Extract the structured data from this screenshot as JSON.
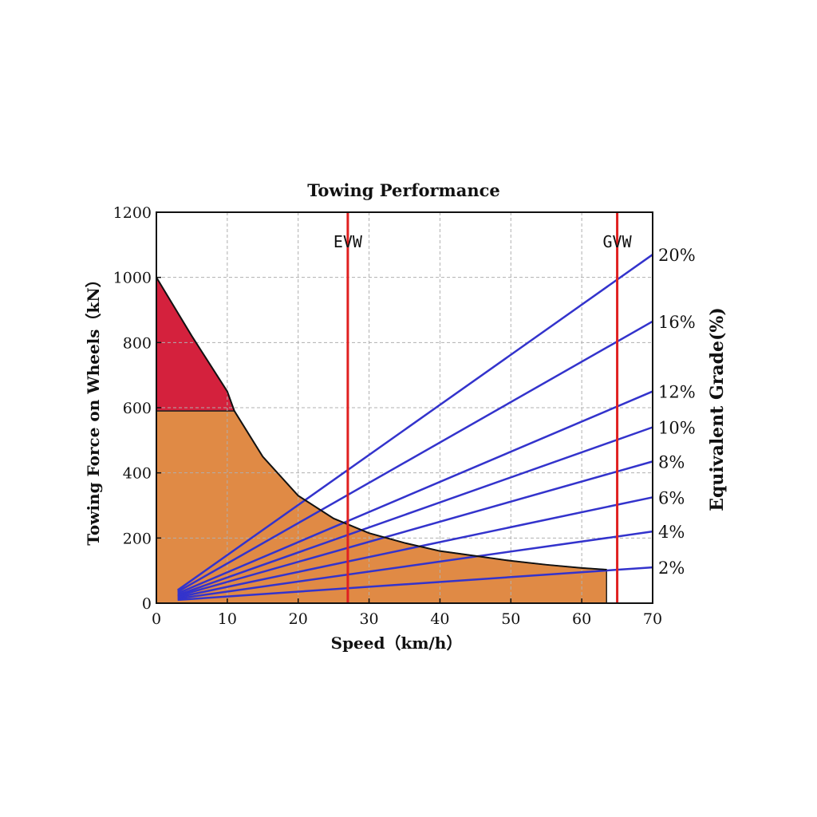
{
  "chart_data": {
    "type": "line",
    "title": "Towing Performance",
    "xlabel": "Speed（km/h）",
    "ylabel": "Towing Force on Wheels（kN）",
    "y2label": "Equivalent Grade(%)",
    "xlim": [
      0,
      70
    ],
    "ylim": [
      0,
      1200
    ],
    "x_ticks": [
      "0",
      "10",
      "20",
      "30",
      "40",
      "50",
      "60",
      "70"
    ],
    "y_ticks": [
      "0",
      "200",
      "400",
      "600",
      "800",
      "1000",
      "1200"
    ],
    "grid": true,
    "tractive_effort_curve": {
      "x": [
        0,
        5,
        10,
        11,
        15,
        20,
        25,
        30,
        35,
        40,
        45,
        50,
        55,
        60,
        63.5
      ],
      "y": [
        1000,
        820,
        650,
        590,
        450,
        330,
        260,
        215,
        185,
        160,
        145,
        130,
        118,
        108,
        103
      ]
    },
    "adhesion_limit": 590,
    "colors": {
      "adhesion_region": "#d4213d",
      "operating_region": "#e08a45",
      "grade_lines": "#3333cc",
      "markers": "#e02020",
      "grid": "#b0b0b0"
    },
    "markers": [
      {
        "label": "EVW",
        "x": 27
      },
      {
        "label": "GVW",
        "x": 65
      }
    ],
    "grade_lines": [
      {
        "label": "20%",
        "x": [
          3,
          70
        ],
        "y": [
          40,
          1070
        ]
      },
      {
        "label": "16%",
        "x": [
          3,
          70
        ],
        "y": [
          35,
          865
        ]
      },
      {
        "label": "12%",
        "x": [
          3,
          70
        ],
        "y": [
          30,
          650
        ]
      },
      {
        "label": "10%",
        "x": [
          3,
          70
        ],
        "y": [
          25,
          540
        ]
      },
      {
        "label": "8%",
        "x": [
          3,
          70
        ],
        "y": [
          22,
          435
        ]
      },
      {
        "label": "6%",
        "x": [
          3,
          70
        ],
        "y": [
          18,
          325
        ]
      },
      {
        "label": "4%",
        "x": [
          3,
          70
        ],
        "y": [
          14,
          220
        ]
      },
      {
        "label": "2%",
        "x": [
          3,
          70
        ],
        "y": [
          10,
          110
        ]
      }
    ]
  }
}
